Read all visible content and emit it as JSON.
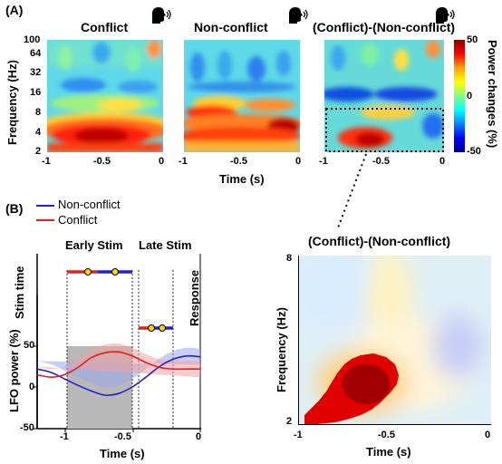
{
  "panel_a": {
    "label": "(A)",
    "titles": [
      "Conflict",
      "Non-conflict",
      "(Conflict)-(Non-conflict)"
    ],
    "ylabel": "Frequency (Hz)",
    "yticks": [
      "100",
      "64",
      "32",
      "16",
      "8",
      "4",
      "2"
    ],
    "xticks": [
      "-1",
      "-0.5",
      "0"
    ],
    "xlabel": "Time (s)",
    "colorbar": {
      "label": "Power changes (%)",
      "ticks": [
        "50",
        "0",
        "-50"
      ],
      "colors": [
        "#8b0000",
        "#ff0000",
        "#ffa500",
        "#ffff00",
        "#7fff7f",
        "#00ffff",
        "#0080ff",
        "#0000ff",
        "#00008b"
      ]
    }
  },
  "panel_b": {
    "label": "(B)",
    "legend": [
      "Non-conflict",
      "Conflict"
    ],
    "phases": [
      "Early Stim",
      "Late Stim"
    ],
    "stim_time_label": "Stim time",
    "response_label": "Response",
    "ylabel": "LFO power (%)",
    "yticks": [
      "50",
      "0",
      "-50"
    ],
    "xticks": [
      "-1",
      "-0.5",
      "0"
    ],
    "xlabel": "Time (s)",
    "colors": {
      "non_conflict": "#2222cc",
      "conflict": "#dd2222",
      "band_non": "#9aa8ee",
      "band_con": "#f0a0a0",
      "shade": "#b8b8b8"
    }
  },
  "panel_zoom": {
    "title": "(Conflict)-(Non-conflict)",
    "ylabel": "Frequency (Hz)",
    "yticks": [
      "8",
      "2"
    ],
    "xticks": [
      "-1",
      "-0.5",
      "0"
    ],
    "xlabel": "Time (s)"
  },
  "chart_data": {
    "type": "line",
    "x": [
      -1.2,
      -1.1,
      -1.0,
      -0.9,
      -0.8,
      -0.7,
      -0.6,
      -0.5,
      -0.4,
      -0.3,
      -0.2,
      -0.1,
      0.0
    ],
    "series": [
      {
        "name": "Non-conflict",
        "values": [
          22,
          18,
          10,
          2,
          -5,
          -10,
          -8,
          0,
          12,
          25,
          34,
          38,
          37
        ]
      },
      {
        "name": "Conflict",
        "values": [
          15,
          12,
          15,
          24,
          36,
          42,
          43,
          38,
          30,
          24,
          22,
          22,
          22
        ]
      }
    ],
    "xlabel": "Time (s)",
    "ylabel": "LFO power (%)",
    "xlim": [
      -1.2,
      0
    ],
    "ylim": [
      -50,
      60
    ]
  }
}
